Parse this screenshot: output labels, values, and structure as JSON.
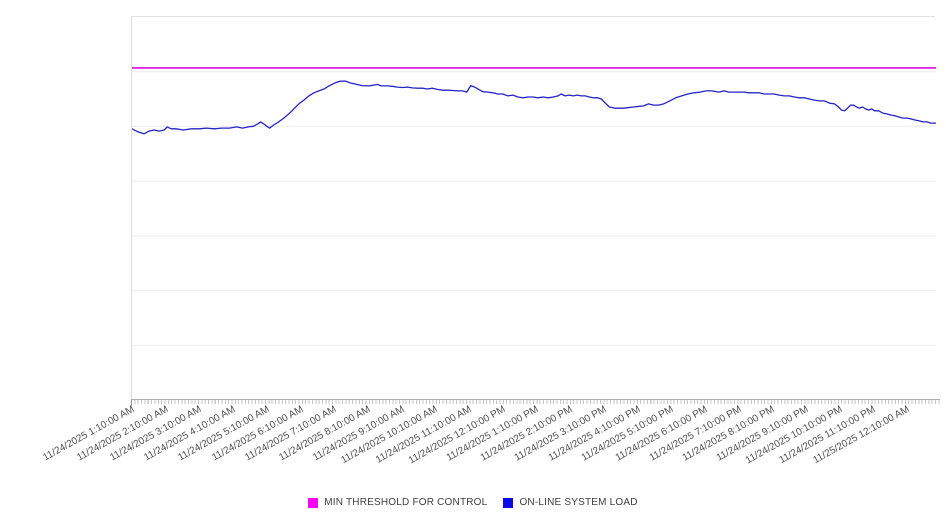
{
  "page": {
    "background": "#ffffff"
  },
  "colors": {
    "grid": "#ececec",
    "plot_border": "#e0e0e0",
    "axis_line": "#aeaeae",
    "tick": "#c6c6c6",
    "x_label_text": "#4e4e4e",
    "legend_text": "#3e3e3e",
    "threshold_line": "#dd0cdd",
    "threshold_swatch": "#fb00fb",
    "load_line": "#2424c8",
    "load_swatch": "#0b0bea"
  },
  "legend": {
    "position": "bottom-center",
    "items": [
      {
        "key": "min-threshold-for-control",
        "label": "MIN THRESHOLD FOR CONTROL",
        "color": "#fb00fb"
      },
      {
        "key": "on-line-system-load",
        "label": "ON-LINE SYSTEM LOAD",
        "color": "#0b0bea"
      }
    ]
  },
  "x_axis": {
    "labels": [
      "11/24/2025 1:10:00 AM",
      "11/24/2025 2:10:00 AM",
      "11/24/2025 3:10:00 AM",
      "11/24/2025 4:10:00 AM",
      "11/24/2025 5:10:00 AM",
      "11/24/2025 6:10:00 AM",
      "11/24/2025 7:10:00 AM",
      "11/24/2025 8:10:00 AM",
      "11/24/2025 9:10:00 AM",
      "11/24/2025 10:10:00 AM",
      "11/24/2025 11:10:00 AM",
      "11/24/2025 12:10:00 PM",
      "11/24/2025 1:10:00 PM",
      "11/24/2025 2:10:00 PM",
      "11/24/2025 3:10:00 PM",
      "11/24/2025 4:10:00 PM",
      "11/24/2025 5:10:00 PM",
      "11/24/2025 6:10:00 PM",
      "11/24/2025 7:10:00 PM",
      "11/24/2025 8:10:00 PM",
      "11/24/2025 9:10:00 PM",
      "11/24/2025 10:10:00 PM",
      "11/24/2025 11:10:00 PM",
      "11/25/2025 12:10:00 AM"
    ],
    "label_rotation_deg": -29,
    "minor_ticks": true
  },
  "chart_data": {
    "type": "line",
    "title": "",
    "xlabel": "",
    "ylabel": "",
    "grid": true,
    "legend_position": "bottom-center",
    "x": {
      "unit": "hours since 11/24/2025 1:10:00 AM",
      "range": [
        0,
        24
      ]
    },
    "y": {
      "unit": "percent of axis height (no tick labels shown)",
      "range": [
        0,
        100
      ],
      "gridline_divisions": 7,
      "tick_labels_visible": false
    },
    "series": [
      {
        "name": "MIN THRESHOLD FOR CONTROL",
        "style": "horizontal-threshold",
        "color": "#dd0cdd",
        "value": 86.7
      },
      {
        "name": "ON-LINE SYSTEM LOAD",
        "style": "line",
        "color": "#2424c8",
        "points": [
          [
            0.0,
            70.8
          ],
          [
            0.18,
            70.0
          ],
          [
            0.36,
            69.5
          ],
          [
            0.51,
            70.2
          ],
          [
            0.66,
            70.5
          ],
          [
            0.81,
            70.2
          ],
          [
            0.96,
            70.5
          ],
          [
            1.05,
            71.3
          ],
          [
            1.17,
            70.8
          ],
          [
            1.32,
            70.8
          ],
          [
            1.53,
            70.5
          ],
          [
            1.77,
            70.8
          ],
          [
            2.01,
            70.8
          ],
          [
            2.22,
            71.0
          ],
          [
            2.46,
            70.8
          ],
          [
            2.67,
            71.0
          ],
          [
            2.91,
            71.0
          ],
          [
            3.12,
            71.3
          ],
          [
            3.3,
            71.0
          ],
          [
            3.48,
            71.3
          ],
          [
            3.63,
            71.5
          ],
          [
            3.75,
            72.1
          ],
          [
            3.84,
            72.6
          ],
          [
            3.93,
            72.1
          ],
          [
            4.02,
            71.5
          ],
          [
            4.11,
            71.0
          ],
          [
            4.23,
            71.8
          ],
          [
            4.38,
            72.6
          ],
          [
            4.53,
            73.6
          ],
          [
            4.68,
            74.7
          ],
          [
            4.83,
            76.0
          ],
          [
            4.98,
            77.3
          ],
          [
            5.13,
            78.3
          ],
          [
            5.28,
            79.4
          ],
          [
            5.43,
            80.2
          ],
          [
            5.58,
            80.7
          ],
          [
            5.73,
            81.2
          ],
          [
            5.88,
            82.0
          ],
          [
            6.06,
            82.8
          ],
          [
            6.21,
            83.2
          ],
          [
            6.36,
            83.3
          ],
          [
            6.51,
            82.8
          ],
          [
            6.66,
            82.5
          ],
          [
            6.87,
            82.1
          ],
          [
            7.08,
            82.0
          ],
          [
            7.2,
            82.2
          ],
          [
            7.32,
            82.4
          ],
          [
            7.44,
            82.0
          ],
          [
            7.62,
            82.0
          ],
          [
            7.77,
            81.9
          ],
          [
            7.92,
            81.7
          ],
          [
            8.07,
            81.6
          ],
          [
            8.22,
            81.7
          ],
          [
            8.37,
            81.5
          ],
          [
            8.52,
            81.4
          ],
          [
            8.67,
            81.4
          ],
          [
            8.82,
            81.2
          ],
          [
            8.97,
            81.4
          ],
          [
            9.12,
            81.1
          ],
          [
            9.27,
            80.9
          ],
          [
            9.42,
            80.9
          ],
          [
            9.57,
            80.8
          ],
          [
            9.72,
            80.7
          ],
          [
            9.87,
            80.7
          ],
          [
            9.99,
            80.4
          ],
          [
            10.11,
            82.1
          ],
          [
            10.23,
            81.7
          ],
          [
            10.35,
            81.1
          ],
          [
            10.47,
            80.5
          ],
          [
            10.62,
            80.4
          ],
          [
            10.77,
            80.2
          ],
          [
            10.92,
            79.9
          ],
          [
            11.07,
            79.9
          ],
          [
            11.22,
            79.4
          ],
          [
            11.37,
            79.6
          ],
          [
            11.52,
            79.1
          ],
          [
            11.67,
            78.9
          ],
          [
            11.82,
            79.1
          ],
          [
            11.97,
            79.1
          ],
          [
            12.12,
            78.9
          ],
          [
            12.27,
            79.1
          ],
          [
            12.42,
            78.9
          ],
          [
            12.57,
            79.1
          ],
          [
            12.72,
            79.4
          ],
          [
            12.81,
            79.9
          ],
          [
            12.93,
            79.4
          ],
          [
            13.05,
            79.6
          ],
          [
            13.17,
            79.4
          ],
          [
            13.29,
            79.6
          ],
          [
            13.41,
            79.4
          ],
          [
            13.53,
            79.4
          ],
          [
            13.65,
            79.1
          ],
          [
            13.77,
            78.9
          ],
          [
            13.89,
            78.9
          ],
          [
            14.01,
            78.6
          ],
          [
            14.13,
            77.5
          ],
          [
            14.25,
            76.5
          ],
          [
            14.43,
            76.2
          ],
          [
            14.67,
            76.2
          ],
          [
            14.97,
            76.5
          ],
          [
            15.27,
            76.8
          ],
          [
            15.42,
            77.3
          ],
          [
            15.57,
            77.0
          ],
          [
            15.72,
            77.0
          ],
          [
            15.87,
            77.3
          ],
          [
            16.05,
            78.1
          ],
          [
            16.23,
            78.9
          ],
          [
            16.41,
            79.4
          ],
          [
            16.59,
            79.9
          ],
          [
            16.77,
            80.2
          ],
          [
            16.95,
            80.4
          ],
          [
            17.13,
            80.7
          ],
          [
            17.31,
            80.7
          ],
          [
            17.52,
            80.4
          ],
          [
            17.67,
            80.7
          ],
          [
            17.82,
            80.4
          ],
          [
            17.97,
            80.4
          ],
          [
            18.12,
            80.4
          ],
          [
            18.27,
            80.4
          ],
          [
            18.42,
            80.2
          ],
          [
            18.57,
            80.2
          ],
          [
            18.72,
            80.2
          ],
          [
            18.87,
            79.9
          ],
          [
            19.02,
            79.9
          ],
          [
            19.17,
            79.9
          ],
          [
            19.32,
            79.6
          ],
          [
            19.47,
            79.4
          ],
          [
            19.62,
            79.4
          ],
          [
            19.77,
            79.1
          ],
          [
            19.92,
            78.9
          ],
          [
            20.07,
            78.9
          ],
          [
            20.22,
            78.6
          ],
          [
            20.37,
            78.3
          ],
          [
            20.52,
            78.1
          ],
          [
            20.67,
            78.1
          ],
          [
            20.82,
            77.5
          ],
          [
            20.97,
            77.3
          ],
          [
            21.09,
            76.5
          ],
          [
            21.18,
            75.7
          ],
          [
            21.27,
            75.5
          ],
          [
            21.36,
            76.2
          ],
          [
            21.45,
            77.0
          ],
          [
            21.54,
            77.0
          ],
          [
            21.63,
            76.5
          ],
          [
            21.72,
            76.2
          ],
          [
            21.81,
            76.5
          ],
          [
            21.9,
            76.0
          ],
          [
            21.99,
            75.7
          ],
          [
            22.08,
            76.0
          ],
          [
            22.17,
            75.5
          ],
          [
            22.29,
            75.5
          ],
          [
            22.41,
            74.9
          ],
          [
            22.53,
            74.7
          ],
          [
            22.65,
            74.4
          ],
          [
            22.77,
            74.2
          ],
          [
            22.89,
            73.9
          ],
          [
            23.01,
            73.6
          ],
          [
            23.13,
            73.6
          ],
          [
            23.25,
            73.4
          ],
          [
            23.37,
            73.1
          ],
          [
            23.49,
            72.9
          ],
          [
            23.61,
            72.6
          ],
          [
            23.73,
            72.6
          ],
          [
            23.85,
            72.3
          ],
          [
            24.0,
            72.3
          ]
        ]
      }
    ]
  }
}
